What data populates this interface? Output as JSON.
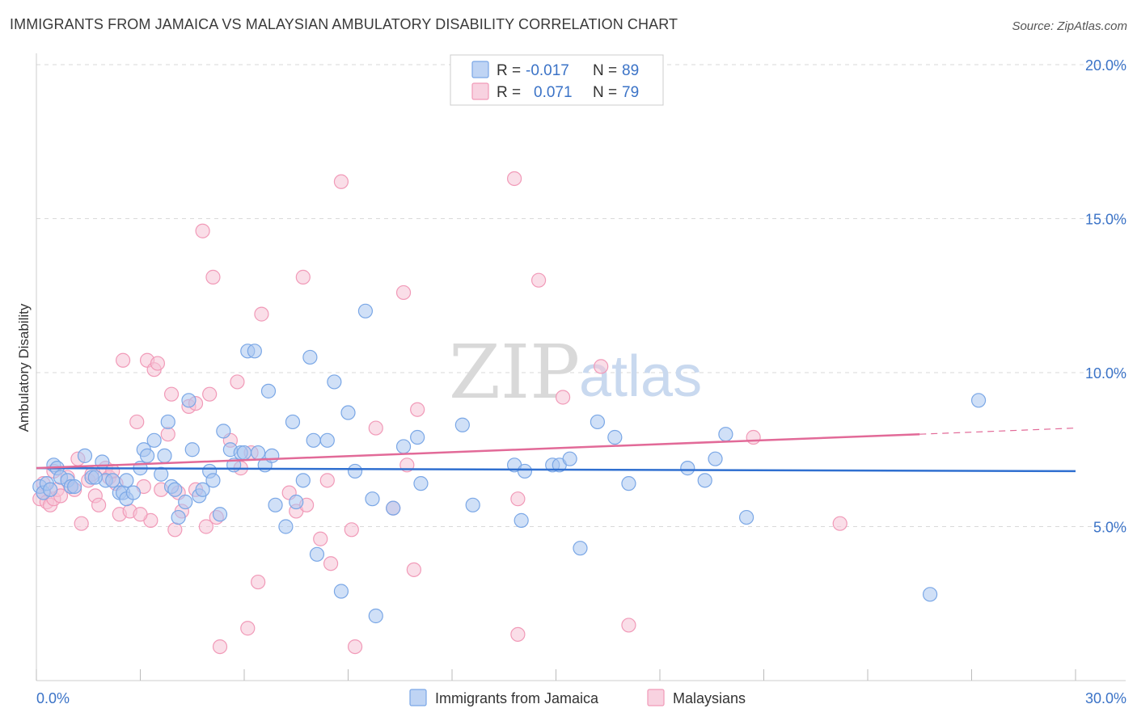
{
  "title": "IMMIGRANTS FROM JAMAICA VS MALAYSIAN AMBULATORY DISABILITY CORRELATION CHART",
  "source": "Source: ZipAtlas.com",
  "watermark": {
    "zip": "ZIP",
    "atlas": "atlas"
  },
  "colors": {
    "blue": "#7aa7e6",
    "blue_fill": "#a9c6f0",
    "blue_line": "#2f6fd0",
    "pink": "#f19ab8",
    "pink_fill": "#f6c3d5",
    "pink_line": "#e26a98",
    "accent_text": "#3b73c7",
    "grid": "#d9d9d9"
  },
  "legend": {
    "rows": [
      {
        "r_label": "R =",
        "r_value": "-0.017",
        "n_label": "N =",
        "n_value": "89"
      },
      {
        "r_label": "R =",
        "r_value": "0.071",
        "n_label": "N =",
        "n_value": "79"
      }
    ]
  },
  "x_axis": {
    "min_label": "0.0%",
    "max_label": "30.0%"
  },
  "chart_data": {
    "type": "scatter",
    "title": "IMMIGRANTS FROM JAMAICA VS MALAYSIAN AMBULATORY DISABILITY CORRELATION CHART",
    "xlabel": "",
    "ylabel": "Ambulatory Disability",
    "xlim": [
      0,
      30
    ],
    "ylim": [
      0,
      20
    ],
    "x_ticks": [
      0,
      3,
      6,
      9,
      12,
      15,
      18,
      21,
      24,
      27,
      30
    ],
    "y_ticks": [
      5,
      10,
      15,
      20
    ],
    "y_tick_labels": [
      "5.0%",
      "10.0%",
      "15.0%",
      "20.0%"
    ],
    "grid": true,
    "legend_placement": "top-center",
    "series": [
      {
        "name": "Immigrants from Jamaica",
        "color": "#7aa7e6",
        "trend": {
          "x": [
            0,
            30
          ],
          "y": [
            6.9,
            6.8
          ]
        },
        "points": [
          [
            0.1,
            6.3
          ],
          [
            0.2,
            6.1
          ],
          [
            0.3,
            6.4
          ],
          [
            0.4,
            6.2
          ],
          [
            0.5,
            7.0
          ],
          [
            0.6,
            6.9
          ],
          [
            0.7,
            6.6
          ],
          [
            0.9,
            6.5
          ],
          [
            1.0,
            6.3
          ],
          [
            1.1,
            6.3
          ],
          [
            1.4,
            7.3
          ],
          [
            1.6,
            6.6
          ],
          [
            1.9,
            7.1
          ],
          [
            2.0,
            6.5
          ],
          [
            2.2,
            6.5
          ],
          [
            2.4,
            6.1
          ],
          [
            2.5,
            6.1
          ],
          [
            2.6,
            5.9
          ],
          [
            2.8,
            6.1
          ],
          [
            3.0,
            6.9
          ],
          [
            3.1,
            7.5
          ],
          [
            3.2,
            7.3
          ],
          [
            3.4,
            7.8
          ],
          [
            3.6,
            6.7
          ],
          [
            3.7,
            7.3
          ],
          [
            3.8,
            8.4
          ],
          [
            3.9,
            6.3
          ],
          [
            4.0,
            6.2
          ],
          [
            4.1,
            5.3
          ],
          [
            4.3,
            5.8
          ],
          [
            4.5,
            7.5
          ],
          [
            4.4,
            9.1
          ],
          [
            4.7,
            6.0
          ],
          [
            4.8,
            6.2
          ],
          [
            5.0,
            6.8
          ],
          [
            5.1,
            6.5
          ],
          [
            5.3,
            5.4
          ],
          [
            5.4,
            8.1
          ],
          [
            5.6,
            7.5
          ],
          [
            5.7,
            7.0
          ],
          [
            5.9,
            7.4
          ],
          [
            6.0,
            7.4
          ],
          [
            6.1,
            10.7
          ],
          [
            6.3,
            10.7
          ],
          [
            6.4,
            7.4
          ],
          [
            6.6,
            7.0
          ],
          [
            6.7,
            9.4
          ],
          [
            6.8,
            7.3
          ],
          [
            6.9,
            5.7
          ],
          [
            7.2,
            5.0
          ],
          [
            7.4,
            8.4
          ],
          [
            7.5,
            5.8
          ],
          [
            7.7,
            6.5
          ],
          [
            7.9,
            10.5
          ],
          [
            8.0,
            7.8
          ],
          [
            8.1,
            4.1
          ],
          [
            8.4,
            7.8
          ],
          [
            8.6,
            9.7
          ],
          [
            8.8,
            2.9
          ],
          [
            9.0,
            8.7
          ],
          [
            9.2,
            6.8
          ],
          [
            9.5,
            12.0
          ],
          [
            9.7,
            5.9
          ],
          [
            9.8,
            2.1
          ],
          [
            10.3,
            5.6
          ],
          [
            10.6,
            7.6
          ],
          [
            11.0,
            7.9
          ],
          [
            11.1,
            6.4
          ],
          [
            12.3,
            8.3
          ],
          [
            12.6,
            5.7
          ],
          [
            13.8,
            7.0
          ],
          [
            14.0,
            5.2
          ],
          [
            14.1,
            6.8
          ],
          [
            14.9,
            7.0
          ],
          [
            15.1,
            7.0
          ],
          [
            15.4,
            7.2
          ],
          [
            15.7,
            4.3
          ],
          [
            16.2,
            8.4
          ],
          [
            16.7,
            7.9
          ],
          [
            17.1,
            6.4
          ],
          [
            18.8,
            6.9
          ],
          [
            19.3,
            6.5
          ],
          [
            19.6,
            7.2
          ],
          [
            19.9,
            8.0
          ],
          [
            20.5,
            5.3
          ],
          [
            25.8,
            2.8
          ],
          [
            27.2,
            9.1
          ],
          [
            2.6,
            6.5
          ],
          [
            1.7,
            6.6
          ]
        ]
      },
      {
        "name": "Malaysians",
        "color": "#f19ab8",
        "trend": {
          "x": [
            0,
            25.5
          ],
          "y": [
            6.9,
            8.0
          ],
          "dashed_to": {
            "x": 30,
            "y": 8.2
          }
        },
        "points": [
          [
            0.1,
            5.9
          ],
          [
            0.2,
            6.1
          ],
          [
            0.3,
            5.8
          ],
          [
            0.4,
            5.7
          ],
          [
            0.5,
            5.9
          ],
          [
            0.6,
            6.2
          ],
          [
            0.7,
            6.0
          ],
          [
            0.9,
            6.6
          ],
          [
            1.0,
            6.3
          ],
          [
            1.2,
            7.2
          ],
          [
            1.3,
            5.1
          ],
          [
            1.5,
            6.5
          ],
          [
            1.7,
            6.0
          ],
          [
            1.8,
            5.7
          ],
          [
            2.0,
            6.9
          ],
          [
            2.1,
            6.6
          ],
          [
            2.3,
            6.4
          ],
          [
            2.4,
            5.4
          ],
          [
            2.5,
            10.4
          ],
          [
            2.7,
            5.5
          ],
          [
            2.9,
            8.4
          ],
          [
            3.1,
            6.3
          ],
          [
            3.2,
            10.4
          ],
          [
            3.3,
            5.2
          ],
          [
            3.4,
            10.1
          ],
          [
            3.5,
            10.3
          ],
          [
            3.6,
            6.2
          ],
          [
            3.8,
            8.0
          ],
          [
            3.9,
            9.3
          ],
          [
            4.0,
            4.9
          ],
          [
            4.1,
            6.1
          ],
          [
            4.2,
            5.5
          ],
          [
            4.4,
            8.9
          ],
          [
            4.6,
            9.0
          ],
          [
            4.8,
            14.6
          ],
          [
            4.9,
            5.0
          ],
          [
            5.0,
            9.3
          ],
          [
            5.1,
            13.1
          ],
          [
            5.2,
            5.3
          ],
          [
            5.3,
            1.1
          ],
          [
            5.6,
            7.8
          ],
          [
            5.8,
            9.7
          ],
          [
            5.9,
            6.9
          ],
          [
            6.1,
            1.7
          ],
          [
            6.4,
            3.2
          ],
          [
            6.5,
            11.9
          ],
          [
            7.3,
            6.1
          ],
          [
            7.5,
            5.5
          ],
          [
            7.7,
            13.1
          ],
          [
            7.8,
            5.7
          ],
          [
            8.2,
            4.6
          ],
          [
            8.4,
            6.5
          ],
          [
            8.5,
            3.8
          ],
          [
            8.8,
            16.2
          ],
          [
            9.1,
            4.9
          ],
          [
            9.2,
            1.1
          ],
          [
            9.8,
            8.2
          ],
          [
            10.3,
            5.6
          ],
          [
            10.6,
            12.6
          ],
          [
            10.7,
            7.0
          ],
          [
            10.9,
            3.6
          ],
          [
            11.0,
            8.8
          ],
          [
            13.8,
            16.3
          ],
          [
            13.9,
            1.5
          ],
          [
            13.9,
            5.9
          ],
          [
            14.5,
            13.0
          ],
          [
            15.2,
            9.2
          ],
          [
            16.3,
            10.2
          ],
          [
            17.1,
            1.8
          ],
          [
            20.7,
            7.9
          ],
          [
            23.2,
            5.1
          ],
          [
            0.2,
            6.4
          ],
          [
            0.5,
            6.8
          ],
          [
            1.1,
            6.2
          ],
          [
            1.6,
            6.7
          ],
          [
            2.2,
            6.8
          ],
          [
            3.0,
            5.4
          ],
          [
            4.6,
            6.2
          ],
          [
            6.2,
            7.4
          ]
        ]
      }
    ]
  },
  "bottom_legend": {
    "items": [
      {
        "label": "Immigrants from Jamaica"
      },
      {
        "label": "Malaysians"
      }
    ]
  }
}
